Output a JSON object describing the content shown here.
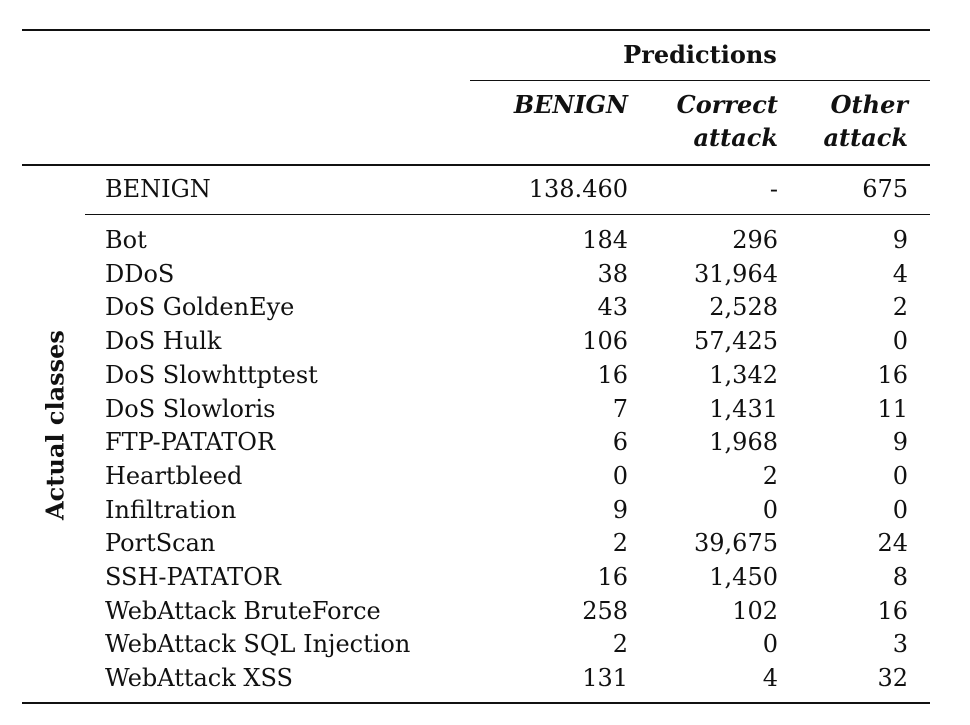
{
  "header": {
    "group_label": "Predictions",
    "columns": [
      {
        "line1": "BENIGN",
        "line2": ""
      },
      {
        "line1": "Correct",
        "line2": "attack"
      },
      {
        "line1": "Other",
        "line2": "attack"
      }
    ]
  },
  "row_group_label": "Actual classes",
  "benign_row": {
    "label": "BENIGN",
    "values": [
      "138.460",
      "-",
      "675"
    ]
  },
  "rows": [
    {
      "label": "Bot",
      "values": [
        "184",
        "296",
        "9"
      ]
    },
    {
      "label": "DDoS",
      "values": [
        "38",
        "31,964",
        "4"
      ]
    },
    {
      "label": "DoS GoldenEye",
      "values": [
        "43",
        "2,528",
        "2"
      ]
    },
    {
      "label": "DoS Hulk",
      "values": [
        "106",
        "57,425",
        "0"
      ]
    },
    {
      "label": "DoS Slowhttptest",
      "values": [
        "16",
        "1,342",
        "16"
      ]
    },
    {
      "label": "DoS Slowloris",
      "values": [
        "7",
        "1,431",
        "11"
      ]
    },
    {
      "label": "FTP-PATATOR",
      "values": [
        "6",
        "1,968",
        "9"
      ]
    },
    {
      "label": "Heartbleed",
      "values": [
        "0",
        "2",
        "0"
      ]
    },
    {
      "label": "Infiltration",
      "values": [
        "9",
        "0",
        "0"
      ]
    },
    {
      "label": "PortScan",
      "values": [
        "2",
        "39,675",
        "24"
      ]
    },
    {
      "label": "SSH-PATATOR",
      "values": [
        "16",
        "1,450",
        "8"
      ]
    },
    {
      "label": "WebAttack BruteForce",
      "values": [
        "258",
        "102",
        "16"
      ]
    },
    {
      "label": "WebAttack SQL Injection",
      "values": [
        "2",
        "0",
        "3"
      ]
    },
    {
      "label": "WebAttack XSS",
      "values": [
        "131",
        "4",
        "32"
      ]
    }
  ]
}
